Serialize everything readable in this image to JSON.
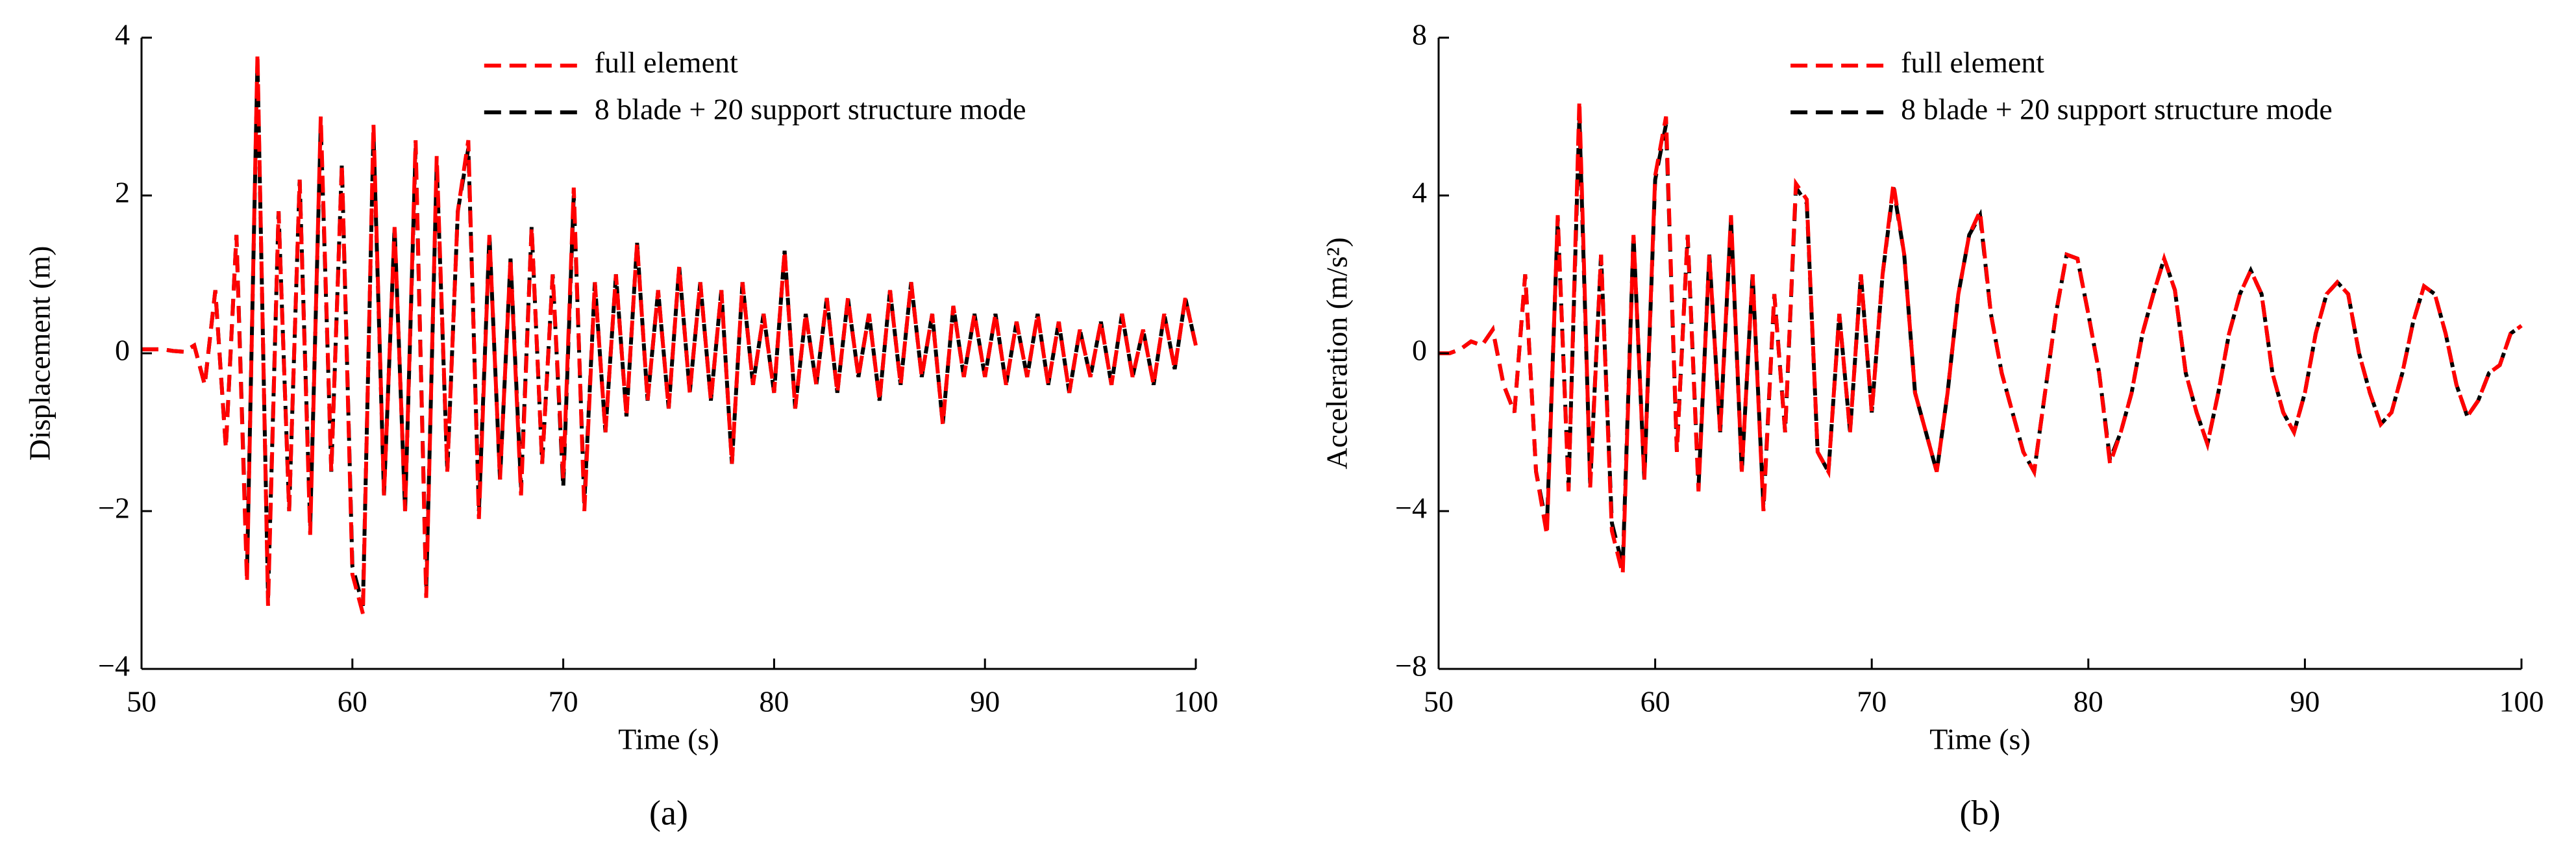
{
  "chart_data": [
    {
      "type": "line",
      "panel_label": "(a)",
      "xlabel": "Time (s)",
      "ylabel": "Displacement (m)",
      "xlim": [
        50,
        100
      ],
      "ylim": [
        -4,
        4
      ],
      "xticks": [
        50,
        60,
        70,
        80,
        90,
        100
      ],
      "yticks": [
        {
          "value": -4,
          "label": "−4"
        },
        {
          "value": -2,
          "label": "−2"
        },
        0,
        2,
        4
      ],
      "legend": "upper center",
      "x": [
        50,
        50.5,
        51,
        51.5,
        52,
        52.5,
        53,
        53.5,
        54,
        54.5,
        55,
        55.5,
        56,
        56.5,
        57,
        57.5,
        58,
        58.5,
        59,
        59.5,
        60,
        60.5,
        61,
        61.5,
        62,
        62.5,
        63,
        63.5,
        64,
        64.5,
        65,
        65.5,
        66,
        66.5,
        67,
        67.5,
        68,
        68.5,
        69,
        69.5,
        70,
        70.5,
        71,
        71.5,
        72,
        72.5,
        73,
        73.5,
        74,
        74.5,
        75,
        75.5,
        76,
        76.5,
        77,
        77.5,
        78,
        78.5,
        79,
        79.5,
        80,
        80.5,
        81,
        81.5,
        82,
        82.5,
        83,
        83.5,
        84,
        84.5,
        85,
        85.5,
        86,
        86.5,
        87,
        87.5,
        88,
        88.5,
        89,
        89.5,
        90,
        90.5,
        91,
        91.5,
        92,
        92.5,
        93,
        93.5,
        94,
        94.5,
        95,
        95.5,
        96,
        96.5,
        97,
        97.5,
        98,
        98.5,
        99,
        99.5,
        100
      ],
      "series": [
        {
          "name": "full element",
          "color": "#ff0000",
          "values": [
            0.05,
            0.05,
            0.05,
            0.03,
            0.02,
            0.1,
            -0.4,
            0.8,
            -1.2,
            1.5,
            -2.9,
            3.8,
            -3.2,
            1.8,
            -2.0,
            2.2,
            -2.3,
            3.0,
            -1.5,
            2.4,
            -2.8,
            -3.3,
            2.9,
            -1.8,
            1.6,
            -2.0,
            2.7,
            -3.1,
            2.5,
            -1.5,
            1.8,
            2.7,
            -2.1,
            1.5,
            -1.6,
            1.2,
            -1.8,
            1.6,
            -1.4,
            1.0,
            -1.6,
            2.1,
            -2.0,
            0.9,
            -1.0,
            1.0,
            -0.8,
            1.4,
            -0.6,
            0.8,
            -0.7,
            1.1,
            -0.5,
            0.9,
            -0.6,
            0.8,
            -1.4,
            0.9,
            -0.4,
            0.5,
            -0.5,
            1.3,
            -0.7,
            0.5,
            -0.4,
            0.7,
            -0.5,
            0.7,
            -0.3,
            0.5,
            -0.6,
            0.8,
            -0.4,
            0.9,
            -0.3,
            0.5,
            -0.9,
            0.6,
            -0.3,
            0.5,
            -0.3,
            0.5,
            -0.4,
            0.4,
            -0.3,
            0.5,
            -0.4,
            0.4,
            -0.5,
            0.3,
            -0.3,
            0.4,
            -0.4,
            0.5,
            -0.3,
            0.3,
            -0.4,
            0.5,
            -0.2,
            0.7,
            0.1
          ]
        },
        {
          "name": "8 blade + 20 support structure mode",
          "color": "#000000",
          "values": [
            0.05,
            0.05,
            0.05,
            0.03,
            0.02,
            0.1,
            -0.4,
            0.8,
            -1.2,
            1.5,
            -2.8,
            3.7,
            -3.1,
            1.8,
            -2.0,
            2.2,
            -2.2,
            2.9,
            -1.5,
            2.4,
            -2.7,
            -3.2,
            2.8,
            -1.8,
            1.6,
            -2.0,
            2.6,
            -3.0,
            2.4,
            -1.5,
            1.8,
            2.6,
            -2.0,
            1.5,
            -1.6,
            1.2,
            -1.7,
            1.6,
            -1.4,
            1.0,
            -1.7,
            2.0,
            -1.9,
            0.9,
            -1.0,
            1.0,
            -0.8,
            1.4,
            -0.6,
            0.8,
            -0.7,
            1.1,
            -0.5,
            0.9,
            -0.6,
            0.8,
            -1.4,
            0.9,
            -0.4,
            0.5,
            -0.5,
            1.3,
            -0.7,
            0.5,
            -0.4,
            0.7,
            -0.5,
            0.7,
            -0.3,
            0.5,
            -0.6,
            0.8,
            -0.4,
            0.9,
            -0.3,
            0.5,
            -0.9,
            0.6,
            -0.3,
            0.5,
            -0.3,
            0.5,
            -0.4,
            0.4,
            -0.3,
            0.5,
            -0.4,
            0.4,
            -0.5,
            0.3,
            -0.3,
            0.4,
            -0.4,
            0.5,
            -0.3,
            0.3,
            -0.4,
            0.5,
            -0.2,
            0.7,
            0.1
          ]
        }
      ]
    },
    {
      "type": "line",
      "panel_label": "(b)",
      "xlabel": "Time (s)",
      "ylabel": "Acceleration (m/s²)",
      "xlim": [
        50,
        100
      ],
      "ylim": [
        -8,
        8
      ],
      "xticks": [
        50,
        60,
        70,
        80,
        90,
        100
      ],
      "yticks": [
        {
          "value": -8,
          "label": "−8"
        },
        {
          "value": -4,
          "label": "−4"
        },
        0,
        4,
        8
      ],
      "legend": "upper center",
      "x": [
        50,
        50.5,
        51,
        51.5,
        52,
        52.5,
        53,
        53.5,
        54,
        54.5,
        55,
        55.5,
        56,
        56.5,
        57,
        57.5,
        58,
        58.5,
        59,
        59.5,
        60,
        60.5,
        61,
        61.5,
        62,
        62.5,
        63,
        63.5,
        64,
        64.5,
        65,
        65.5,
        66,
        66.5,
        67,
        67.5,
        68,
        68.5,
        69,
        69.5,
        70,
        70.5,
        71,
        71.5,
        72,
        72.5,
        73,
        73.5,
        74,
        74.5,
        75,
        75.5,
        76,
        76.5,
        77,
        77.5,
        78,
        78.5,
        79,
        79.5,
        80,
        80.5,
        81,
        81.5,
        82,
        82.5,
        83,
        83.5,
        84,
        84.5,
        85,
        85.5,
        86,
        86.5,
        87,
        87.5,
        88,
        88.5,
        89,
        89.5,
        90,
        90.5,
        91,
        91.5,
        92,
        92.5,
        93,
        93.5,
        94,
        94.5,
        95,
        95.5,
        96,
        96.5,
        97,
        97.5,
        98,
        98.5,
        99,
        99.5,
        100
      ],
      "series": [
        {
          "name": "full element",
          "color": "#ff0000",
          "values": [
            0,
            0,
            0.1,
            0.3,
            0.2,
            0.6,
            -0.8,
            -1.5,
            2.0,
            -3.0,
            -4.6,
            3.5,
            -3.5,
            6.4,
            -3.4,
            2.5,
            -4.5,
            -5.6,
            3.0,
            -3.2,
            4.5,
            6.0,
            -2.5,
            3.0,
            -3.5,
            2.5,
            -2.0,
            3.5,
            -3.0,
            2.0,
            -4.0,
            1.5,
            -2.0,
            4.3,
            3.9,
            -2.5,
            -3.0,
            1.0,
            -2.0,
            2.0,
            -1.5,
            2.0,
            4.3,
            2.5,
            -1.0,
            -2.0,
            -3.0,
            -1.0,
            1.5,
            3.0,
            3.6,
            1.0,
            -0.5,
            -1.5,
            -2.5,
            -3.0,
            -1.0,
            1.0,
            2.5,
            2.4,
            1.0,
            -0.5,
            -2.8,
            -2.0,
            -1.0,
            0.5,
            1.5,
            2.4,
            1.6,
            -0.5,
            -1.5,
            -2.3,
            -1.0,
            0.5,
            1.5,
            2.1,
            1.5,
            -0.5,
            -1.5,
            -2.0,
            -1.0,
            0.5,
            1.5,
            1.8,
            1.5,
            0.0,
            -1.0,
            -1.8,
            -1.5,
            -0.5,
            0.8,
            1.7,
            1.5,
            0.5,
            -0.8,
            -1.6,
            -1.2,
            -0.5,
            -0.3,
            0.5,
            0.7
          ]
        },
        {
          "name": "8 blade + 20 support structure mode",
          "color": "#000000",
          "values": [
            0,
            0,
            0.1,
            0.3,
            0.2,
            0.6,
            -0.8,
            -1.5,
            2.0,
            -3.0,
            -4.4,
            3.4,
            -3.4,
            6.0,
            -3.3,
            2.5,
            -4.3,
            -5.4,
            3.0,
            -3.2,
            4.4,
            5.8,
            -2.5,
            3.0,
            -3.4,
            2.5,
            -2.0,
            3.4,
            -3.0,
            2.0,
            -3.9,
            1.5,
            -2.0,
            4.2,
            3.8,
            -2.5,
            -3.0,
            1.0,
            -2.0,
            2.0,
            -1.5,
            2.0,
            4.2,
            2.5,
            -1.0,
            -2.0,
            -3.0,
            -1.0,
            1.5,
            3.0,
            3.5,
            1.0,
            -0.5,
            -1.5,
            -2.5,
            -3.0,
            -1.0,
            1.0,
            2.5,
            2.4,
            1.0,
            -0.5,
            -2.7,
            -2.0,
            -1.0,
            0.5,
            1.5,
            2.4,
            1.6,
            -0.5,
            -1.5,
            -2.3,
            -1.0,
            0.5,
            1.5,
            2.1,
            1.5,
            -0.5,
            -1.5,
            -2.0,
            -1.0,
            0.5,
            1.5,
            1.8,
            1.5,
            0.0,
            -1.0,
            -1.8,
            -1.5,
            -0.5,
            0.8,
            1.7,
            1.5,
            0.5,
            -0.8,
            -1.6,
            -1.2,
            -0.5,
            -0.3,
            0.5,
            0.7
          ]
        }
      ]
    }
  ]
}
